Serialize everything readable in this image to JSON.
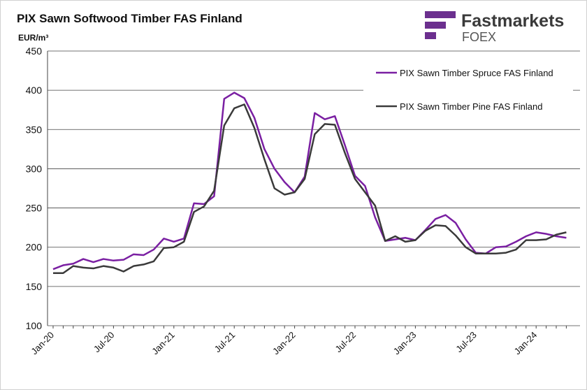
{
  "chart_data": {
    "type": "line",
    "title": "PIX Sawn Softwood Timber FAS Finland",
    "y_label": "EUR/m³",
    "logo": {
      "name": "Fastmarkets",
      "sub": "FOEX"
    },
    "categories": [
      "Jan-20",
      null,
      null,
      null,
      null,
      null,
      "Jul-20",
      null,
      null,
      null,
      null,
      null,
      "Jan-21",
      null,
      null,
      null,
      null,
      null,
      "Jul-21",
      null,
      null,
      null,
      null,
      null,
      "Jan-22",
      null,
      null,
      null,
      null,
      null,
      "Jul-22",
      null,
      null,
      null,
      null,
      null,
      "Jan-23",
      null,
      null,
      null,
      null,
      null,
      "Jul-23",
      null,
      null,
      null,
      null,
      null,
      "Jan-24",
      null,
      null,
      null
    ],
    "series": [
      {
        "name": "PIX Sawn Timber Spruce FAS Finland",
        "color": "#7a1fa2",
        "values": [
          172,
          177,
          179,
          185,
          181,
          185,
          183,
          184,
          191,
          190,
          197,
          211,
          207,
          211,
          256,
          255,
          265,
          389,
          397,
          390,
          365,
          325,
          300,
          283,
          270,
          290,
          371,
          363,
          367,
          330,
          291,
          278,
          238,
          208,
          210,
          212,
          209,
          222,
          236,
          241,
          231,
          210,
          193,
          192,
          200,
          201,
          207,
          214,
          219,
          217,
          214,
          212
        ]
      },
      {
        "name": "PIX Sawn Timber Pine FAS Finland",
        "color": "#3a3a3a",
        "values": [
          167,
          167,
          176,
          174,
          173,
          176,
          174,
          169,
          176,
          178,
          182,
          199,
          200,
          207,
          245,
          252,
          272,
          355,
          377,
          382,
          352,
          312,
          275,
          267,
          270,
          287,
          344,
          357,
          356,
          320,
          287,
          270,
          253,
          208,
          214,
          207,
          209,
          221,
          228,
          227,
          215,
          200,
          192,
          192,
          192,
          193,
          197,
          209,
          209,
          210,
          216,
          219
        ]
      }
    ],
    "ylim": [
      100,
      450
    ],
    "yticks": [
      100,
      150,
      200,
      250,
      300,
      350,
      400,
      450
    ],
    "grid": true,
    "legend": "upper right"
  }
}
